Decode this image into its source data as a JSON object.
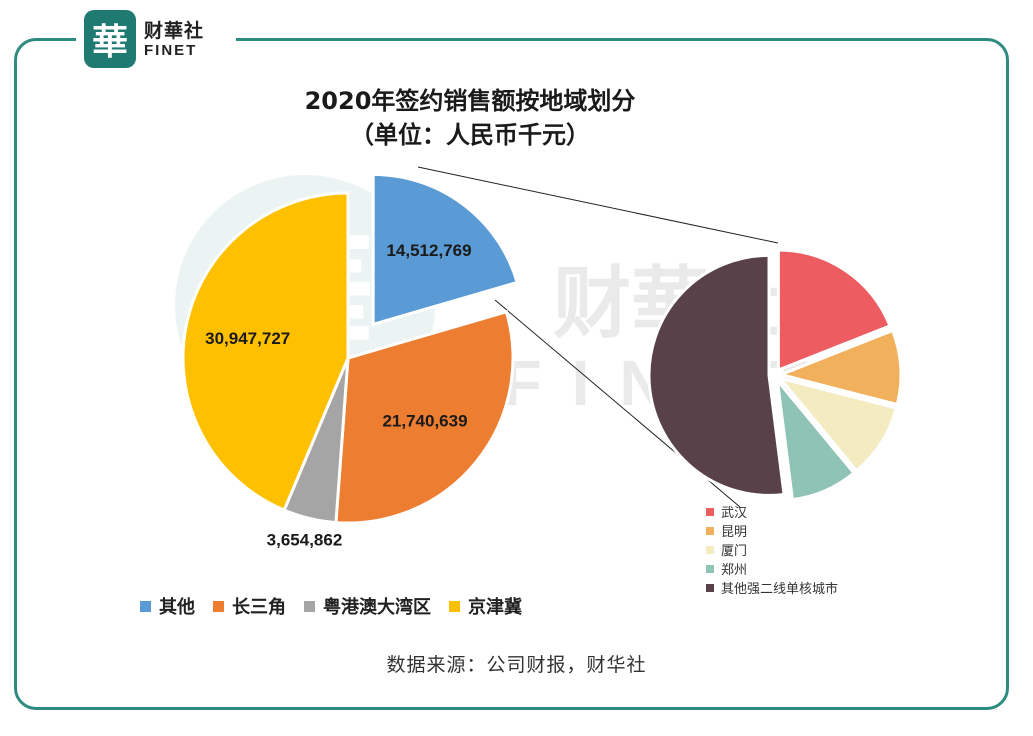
{
  "brand": {
    "seal_char": "華",
    "name_cn": "财華社",
    "name_en": "FINET"
  },
  "watermark": {
    "char": "華",
    "name_cn": "财華社",
    "name_en": "FINET"
  },
  "source": "数据来源：公司财报，财华社",
  "colors": {
    "frame": "#2e8b80",
    "其他": "#5b9bd5",
    "长三角": "#ed7d31",
    "粤港澳大湾区": "#a5a5a5",
    "京津冀": "#ffc000"
  },
  "chart_data": [
    {
      "type": "pie",
      "title": "2020年签约销售额按地域划分",
      "subtitle": "（单位：人民币千元）",
      "legend_position": "bottom",
      "slices": [
        {
          "name": "其他",
          "value": 14512769,
          "label": "14,512,769",
          "color": "#5b9bd5",
          "exploded": true
        },
        {
          "name": "长三角",
          "value": 21740639,
          "label": "21,740,639",
          "color": "#ed7d31"
        },
        {
          "name": "粤港澳大湾区",
          "value": 3654862,
          "label": "3,654,862",
          "color": "#a5a5a5"
        },
        {
          "name": "京津冀",
          "value": 30947727,
          "label": "30,947,727",
          "color": "#ffc000"
        }
      ]
    },
    {
      "type": "pie",
      "breakdown_of": "其他",
      "legend_position": "bottom-left",
      "slices": [
        {
          "name": "武汉",
          "value": 19,
          "color": "#ed5c60"
        },
        {
          "name": "昆明",
          "value": 10,
          "color": "#f1b05b"
        },
        {
          "name": "厦门",
          "value": 10,
          "color": "#f4ebc0"
        },
        {
          "name": "郑州",
          "value": 9,
          "color": "#8ec3b5"
        },
        {
          "name": "其他强二线单核城市",
          "value": 52,
          "color": "#584148"
        }
      ]
    }
  ]
}
